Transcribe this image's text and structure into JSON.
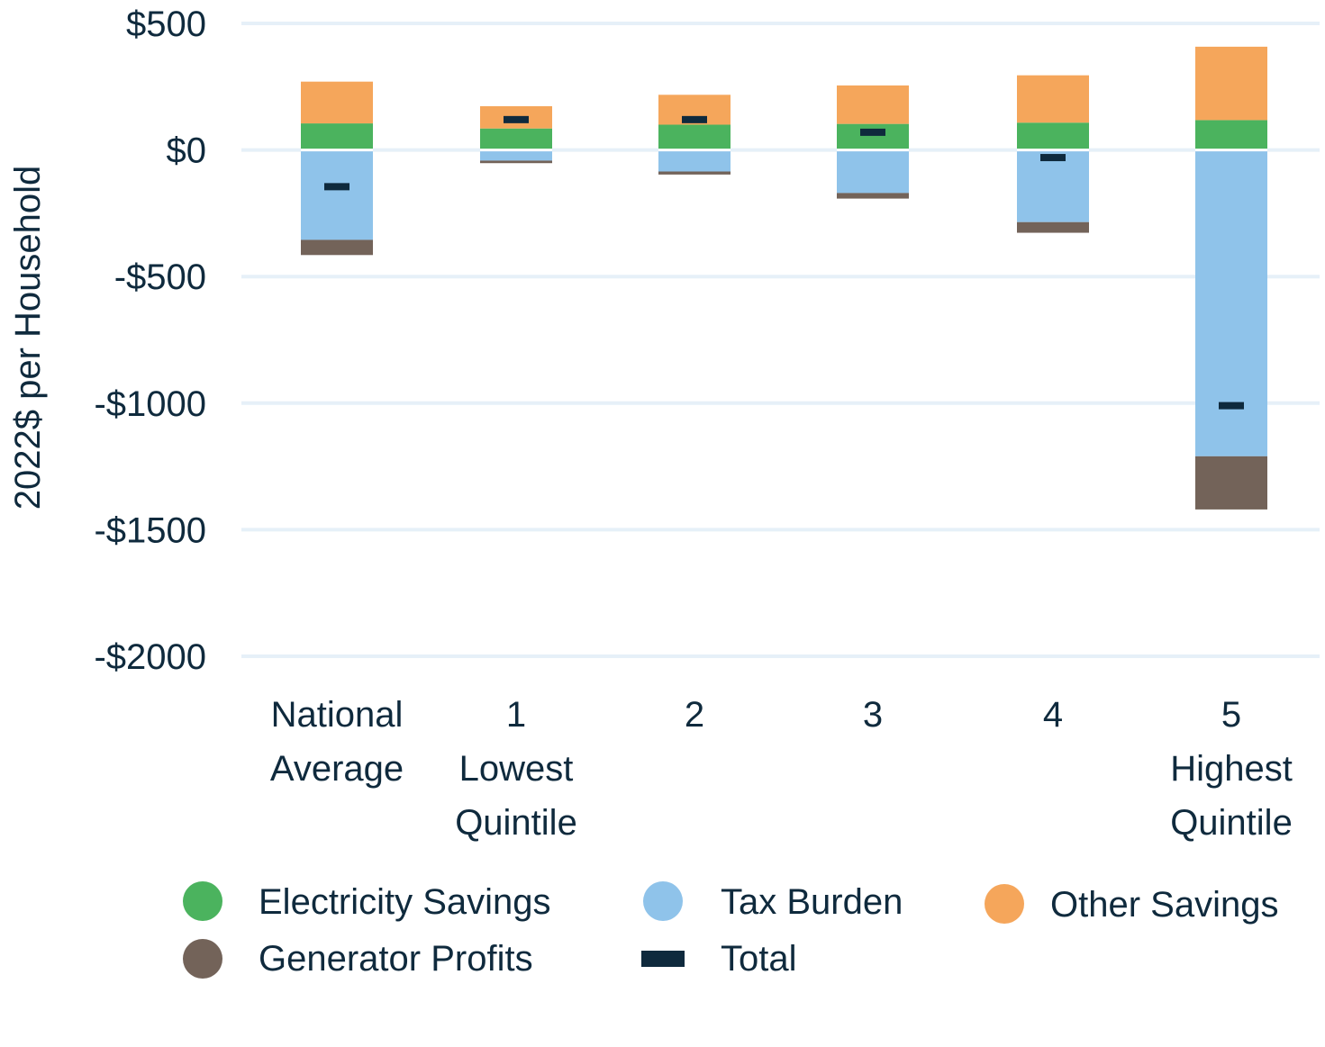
{
  "chart_data": {
    "type": "bar",
    "stacked": true,
    "title": "",
    "xlabel": "",
    "ylabel": "2022$ per Household",
    "ylim": [
      -2000,
      500
    ],
    "yticks": [
      500,
      0,
      -500,
      -1000,
      -1500,
      -2000
    ],
    "ytick_labels": [
      "$500",
      "$0",
      "-$500",
      "-$1000",
      "-$1500",
      "-$2000"
    ],
    "grid": true,
    "legend_position": "bottom",
    "categories": [
      [
        "National",
        "Average"
      ],
      [
        "1",
        "Lowest",
        "Quintile"
      ],
      [
        "2"
      ],
      [
        "3"
      ],
      [
        "4"
      ],
      [
        "5",
        "Highest",
        "Quintile"
      ]
    ],
    "series": [
      {
        "name": "Electricity Savings",
        "color": "#4bb35e",
        "kind": "bar",
        "values": [
          105,
          85,
          100,
          103,
          108,
          118
        ]
      },
      {
        "name": "Other Savings",
        "color": "#f5a65b",
        "kind": "bar",
        "values": [
          165,
          88,
          118,
          152,
          187,
          290
        ]
      },
      {
        "name": "Tax Burden",
        "color": "#8fc3ea",
        "kind": "bar",
        "values": [
          -355,
          -42,
          -85,
          -170,
          -285,
          -1210
        ]
      },
      {
        "name": "Generator Profits",
        "color": "#736359",
        "kind": "bar",
        "values": [
          -60,
          -10,
          -12,
          -22,
          -42,
          -210
        ]
      },
      {
        "name": "Total",
        "color": "#0f2a3d",
        "kind": "marker",
        "values": [
          -145,
          120,
          120,
          70,
          -30,
          -1010
        ]
      }
    ],
    "legend_rows": [
      [
        "Electricity Savings",
        "Tax Burden",
        "Other Savings"
      ],
      [
        "Generator Profits",
        "Total"
      ]
    ]
  }
}
